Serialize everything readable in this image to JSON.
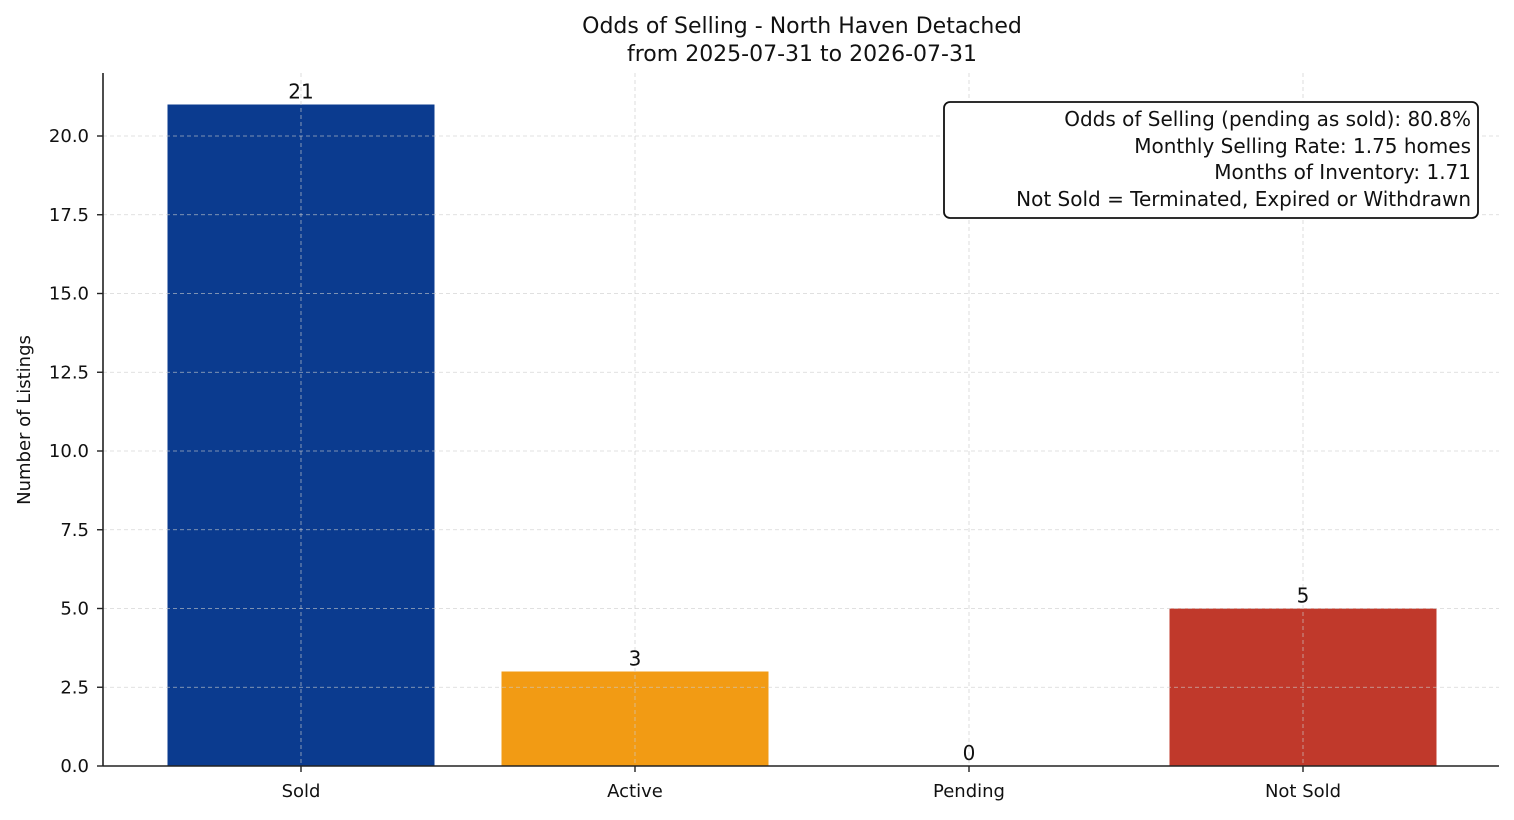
{
  "chart_data": {
    "type": "bar",
    "title": "Odds of Selling - North Haven Detached",
    "subtitle": "from 2025-07-31 to 2026-07-31",
    "xlabel": "",
    "ylabel": "Number of Listings",
    "categories": [
      "Sold",
      "Active",
      "Pending",
      "Not Sold"
    ],
    "values": [
      21,
      3,
      0,
      5
    ],
    "value_labels": [
      "21",
      "3",
      "0",
      "5"
    ],
    "colors": [
      "#0b3b8f",
      "#f29b14",
      "#2b8a3e",
      "#c0392b"
    ],
    "ylim": [
      0,
      22
    ],
    "yticks": [
      0,
      2.5,
      5,
      7.5,
      10,
      12.5,
      15,
      17.5,
      20
    ],
    "ytick_labels": [
      "0.0",
      "2.5",
      "5.0",
      "7.5",
      "10.0",
      "12.5",
      "15.0",
      "17.5",
      "20.0"
    ],
    "grid": true,
    "info_box": {
      "placement": "top-right",
      "lines": [
        "Odds of Selling (pending as sold): 80.8%",
        "Monthly Selling Rate: 1.75 homes",
        "Months of Inventory: 1.71",
        "Not Sold = Terminated, Expired or Withdrawn"
      ]
    }
  }
}
